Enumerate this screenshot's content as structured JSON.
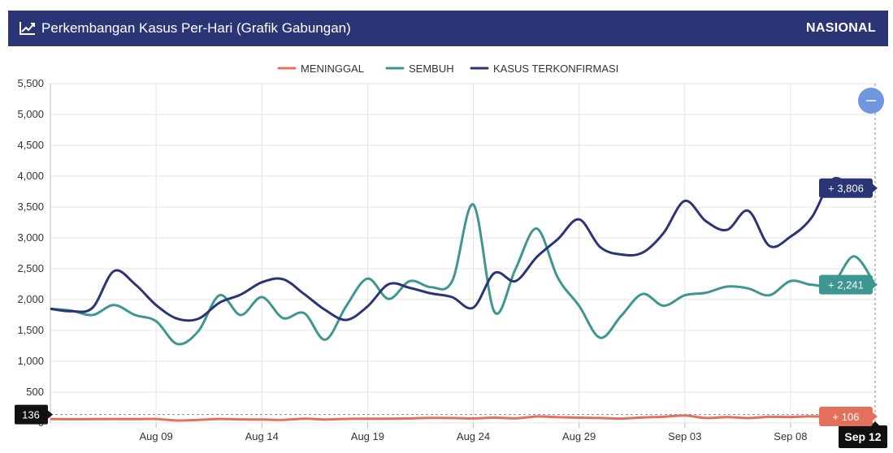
{
  "header": {
    "title": "Perkembangan Kasus Per-Hari (Grafik Gabungan)",
    "scope": "NASIONAL",
    "icon": "line-chart-icon"
  },
  "zoom_button": {
    "icon": "minus-icon",
    "color": "#6f97e0"
  },
  "crosshair": {
    "date_label": "Sep 12",
    "y_label": "136",
    "badges": [
      {
        "series": "KASUS TERKONFIRMASI",
        "text": "+ 3,806",
        "color": "#2b3575"
      },
      {
        "series": "SEMBUH",
        "text": "+ 2,241",
        "color": "#3d9690"
      },
      {
        "series": "MENINGGAL",
        "text": "+ 106",
        "color": "#e4705c"
      }
    ]
  },
  "chart_data": {
    "type": "line",
    "title": "Perkembangan Kasus Per-Hari (Grafik Gabungan)",
    "legend_position": "top-center",
    "grid": true,
    "ylim": [
      0,
      5500
    ],
    "y_ticks": [
      "0",
      "500",
      "1,000",
      "1,500",
      "2,000",
      "2,500",
      "3,000",
      "3,500",
      "4,000",
      "4,500",
      "5,000",
      "5,500"
    ],
    "x_ticks": [
      "Aug 09",
      "Aug 14",
      "Aug 19",
      "Aug 24",
      "Aug 29",
      "Sep 03",
      "Sep 08"
    ],
    "x": [
      "Aug 04",
      "Aug 05",
      "Aug 06",
      "Aug 07",
      "Aug 08",
      "Aug 09",
      "Aug 10",
      "Aug 11",
      "Aug 12",
      "Aug 13",
      "Aug 14",
      "Aug 15",
      "Aug 16",
      "Aug 17",
      "Aug 18",
      "Aug 19",
      "Aug 20",
      "Aug 21",
      "Aug 22",
      "Aug 23",
      "Aug 24",
      "Aug 25",
      "Aug 26",
      "Aug 27",
      "Aug 28",
      "Aug 29",
      "Aug 30",
      "Aug 31",
      "Sep 01",
      "Sep 02",
      "Sep 03",
      "Sep 04",
      "Sep 05",
      "Sep 06",
      "Sep 07",
      "Sep 08",
      "Sep 09",
      "Sep 10",
      "Sep 11",
      "Sep 12"
    ],
    "series": [
      {
        "name": "MENINGGAL",
        "color": "#e4705c",
        "values": [
          65,
          60,
          62,
          65,
          62,
          64,
          40,
          50,
          65,
          58,
          55,
          50,
          70,
          57,
          66,
          69,
          69,
          74,
          82,
          80,
          74,
          86,
          75,
          105,
          95,
          85,
          80,
          71,
          90,
          100,
          120,
          80,
          95,
          80,
          100,
          98,
          106,
          98,
          108,
          106
        ]
      },
      {
        "name": "SEMBUH",
        "color": "#3d9690",
        "values": [
          1850,
          1820,
          1750,
          1910,
          1750,
          1650,
          1280,
          1490,
          2070,
          1750,
          2040,
          1700,
          1780,
          1350,
          1900,
          2340,
          2010,
          2300,
          2200,
          2300,
          3540,
          1800,
          2500,
          3150,
          2350,
          1900,
          1380,
          1740,
          2090,
          1900,
          2070,
          2110,
          2210,
          2180,
          2070,
          2300,
          2240,
          2260,
          2700,
          2241
        ]
      },
      {
        "name": "KASUS TERKONFIRMASI",
        "color": "#2b3575",
        "values": [
          1850,
          1810,
          1870,
          2460,
          2250,
          1910,
          1690,
          1690,
          1950,
          2080,
          2280,
          2330,
          2090,
          1830,
          1670,
          1890,
          2250,
          2190,
          2100,
          2040,
          1870,
          2430,
          2300,
          2690,
          2980,
          3300,
          2850,
          2730,
          2760,
          3080,
          3600,
          3270,
          3130,
          3440,
          2870,
          3020,
          3330,
          3950,
          3806,
          3806
        ]
      }
    ]
  }
}
